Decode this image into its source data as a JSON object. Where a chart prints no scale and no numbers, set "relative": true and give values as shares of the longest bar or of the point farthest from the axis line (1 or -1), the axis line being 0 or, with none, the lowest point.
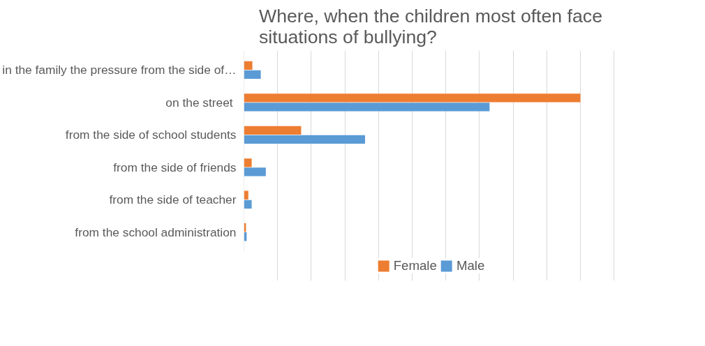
{
  "chart_data": {
    "type": "bar",
    "orientation": "horizontal",
    "relative": true,
    "title": "Where, when the children most often face situations of bullying?",
    "categories": [
      "in the family the pressure from the side of…",
      "on the street ",
      "from the side of school students",
      "from the side of friends",
      "from the side of teacher",
      "from the school administration"
    ],
    "series": [
      {
        "name": "Female",
        "color": "#ed7d31",
        "values": [
          0.025,
          1.0,
          0.17,
          0.023,
          0.013,
          0.006
        ]
      },
      {
        "name": "Male",
        "color": "#5b9bd5",
        "values": [
          0.05,
          0.73,
          0.36,
          0.065,
          0.023,
          0.008
        ]
      }
    ],
    "grid": "x",
    "legend": "bottom"
  }
}
